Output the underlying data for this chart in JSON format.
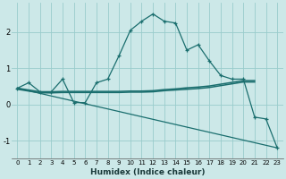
{
  "xlabel": "Humidex (Indice chaleur)",
  "ylabel": "",
  "background_color": "#cce8e8",
  "grid_color": "#99cccc",
  "line_color": "#1a6e6e",
  "xlim": [
    -0.5,
    23.5
  ],
  "ylim": [
    -1.5,
    2.8
  ],
  "yticks": [
    -1,
    0,
    1,
    2
  ],
  "x": [
    0,
    1,
    2,
    3,
    4,
    5,
    6,
    7,
    8,
    9,
    10,
    11,
    12,
    13,
    14,
    15,
    16,
    17,
    18,
    19,
    20,
    21,
    22,
    23
  ],
  "line1_y": [
    0.45,
    0.6,
    0.35,
    0.35,
    0.7,
    0.05,
    0.05,
    0.6,
    0.7,
    1.35,
    2.05,
    2.3,
    2.5,
    2.3,
    2.25,
    1.5,
    1.65,
    1.2,
    0.8,
    0.7,
    0.7,
    -0.35,
    -0.4,
    -1.2
  ],
  "line2_x": [
    0,
    2,
    3,
    4,
    5,
    6,
    7,
    8,
    9,
    10,
    11,
    12,
    13,
    14,
    15,
    16,
    17,
    18,
    19,
    20,
    21
  ],
  "line2_y": [
    0.42,
    0.32,
    0.32,
    0.33,
    0.33,
    0.33,
    0.33,
    0.33,
    0.33,
    0.34,
    0.34,
    0.35,
    0.38,
    0.4,
    0.42,
    0.44,
    0.47,
    0.52,
    0.57,
    0.62,
    0.62
  ],
  "line3_x": [
    0,
    2,
    3,
    4,
    5,
    6,
    7,
    8,
    9,
    10,
    11,
    12,
    13,
    14,
    15,
    16,
    17,
    18,
    19,
    20,
    21
  ],
  "line3_y": [
    0.45,
    0.35,
    0.35,
    0.36,
    0.36,
    0.36,
    0.36,
    0.36,
    0.36,
    0.37,
    0.37,
    0.38,
    0.41,
    0.43,
    0.46,
    0.48,
    0.51,
    0.56,
    0.61,
    0.66,
    0.66
  ],
  "line4_x": [
    0,
    23
  ],
  "line4_y": [
    0.45,
    -1.2
  ]
}
